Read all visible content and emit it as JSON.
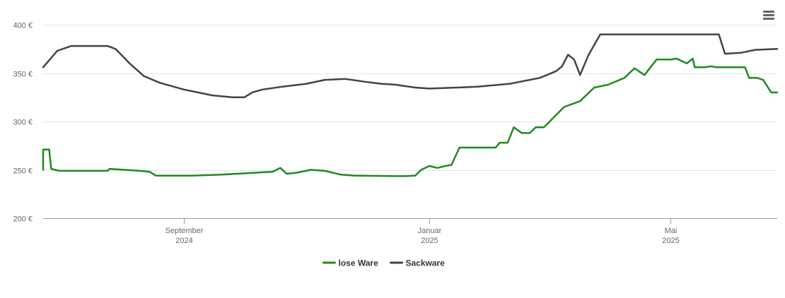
{
  "chart_data": {
    "type": "line",
    "title": "",
    "xlabel": "",
    "ylabel": "",
    "ylim": [
      200,
      400
    ],
    "yticks": [
      {
        "value": 200,
        "label": "200 €"
      },
      {
        "value": 250,
        "label": "250 €"
      },
      {
        "value": 300,
        "label": "300 €"
      },
      {
        "value": 350,
        "label": "350 €"
      },
      {
        "value": 400,
        "label": "400 €"
      }
    ],
    "xlim": [
      "2024-06-23",
      "2025-06-23"
    ],
    "xticks": [
      {
        "date": "2024-09-01",
        "line1": "September",
        "line2": "2024"
      },
      {
        "date": "2025-01-01",
        "line1": "Januar",
        "line2": "2025"
      },
      {
        "date": "2025-05-01",
        "line1": "Mai",
        "line2": "2025"
      }
    ],
    "grid": true,
    "legend_position": "bottom-center",
    "series": [
      {
        "name": "lose Ware",
        "color": "#1e8a1e",
        "points": [
          [
            "2024-06-23",
            250
          ],
          [
            "2024-06-23",
            271
          ],
          [
            "2024-06-26",
            271
          ],
          [
            "2024-06-27",
            251
          ],
          [
            "2024-07-01",
            249
          ],
          [
            "2024-07-25",
            249
          ],
          [
            "2024-07-26",
            251
          ],
          [
            "2024-08-10",
            249
          ],
          [
            "2024-08-15",
            248
          ],
          [
            "2024-08-18",
            244
          ],
          [
            "2024-09-05",
            244
          ],
          [
            "2024-09-20",
            245
          ],
          [
            "2024-10-15",
            248
          ],
          [
            "2024-10-19",
            252
          ],
          [
            "2024-10-22",
            246
          ],
          [
            "2024-10-27",
            247
          ],
          [
            "2024-11-03",
            250
          ],
          [
            "2024-11-10",
            249
          ],
          [
            "2024-11-18",
            245
          ],
          [
            "2024-11-25",
            244
          ],
          [
            "2024-12-15",
            243.5
          ],
          [
            "2024-12-20",
            243.5
          ],
          [
            "2024-12-25",
            244
          ],
          [
            "2024-12-28",
            250
          ],
          [
            "2025-01-01",
            254
          ],
          [
            "2025-01-05",
            252
          ],
          [
            "2025-01-09",
            254
          ],
          [
            "2025-01-12",
            255
          ],
          [
            "2025-01-16",
            273
          ],
          [
            "2025-02-03",
            273
          ],
          [
            "2025-02-05",
            278
          ],
          [
            "2025-02-09",
            278
          ],
          [
            "2025-02-12",
            294
          ],
          [
            "2025-02-16",
            288
          ],
          [
            "2025-02-20",
            288
          ],
          [
            "2025-02-23",
            294
          ],
          [
            "2025-02-27",
            294
          ],
          [
            "2025-03-09",
            315
          ],
          [
            "2025-03-17",
            321
          ],
          [
            "2025-03-24",
            335
          ],
          [
            "2025-03-31",
            338
          ],
          [
            "2025-04-08",
            345
          ],
          [
            "2025-04-13",
            355
          ],
          [
            "2025-04-18",
            348
          ],
          [
            "2025-04-24",
            364
          ],
          [
            "2025-05-01",
            364
          ],
          [
            "2025-05-04",
            365
          ],
          [
            "2025-05-09",
            360
          ],
          [
            "2025-05-12",
            365
          ],
          [
            "2025-05-13",
            356
          ],
          [
            "2025-05-18",
            356
          ],
          [
            "2025-05-21",
            357
          ],
          [
            "2025-05-24",
            356
          ],
          [
            "2025-06-01",
            356
          ],
          [
            "2025-06-07",
            356
          ],
          [
            "2025-06-09",
            345
          ],
          [
            "2025-06-13",
            345
          ],
          [
            "2025-06-16",
            343
          ],
          [
            "2025-06-20",
            330
          ],
          [
            "2025-06-23",
            330
          ]
        ]
      },
      {
        "name": "Sackware",
        "color": "#434348",
        "points": [
          [
            "2024-06-23",
            356
          ],
          [
            "2024-06-30",
            373
          ],
          [
            "2024-07-07",
            378
          ],
          [
            "2024-07-25",
            378
          ],
          [
            "2024-07-29",
            375
          ],
          [
            "2024-08-05",
            360
          ],
          [
            "2024-08-12",
            347
          ],
          [
            "2024-08-20",
            340
          ],
          [
            "2024-09-01",
            333
          ],
          [
            "2024-09-15",
            327
          ],
          [
            "2024-09-25",
            325
          ],
          [
            "2024-10-01",
            325
          ],
          [
            "2024-10-05",
            330
          ],
          [
            "2024-10-10",
            333
          ],
          [
            "2024-10-20",
            336
          ],
          [
            "2024-11-01",
            339
          ],
          [
            "2024-11-10",
            343
          ],
          [
            "2024-11-20",
            344
          ],
          [
            "2024-11-30",
            341
          ],
          [
            "2024-12-08",
            339
          ],
          [
            "2024-12-15",
            338
          ],
          [
            "2024-12-25",
            335
          ],
          [
            "2025-01-01",
            334
          ],
          [
            "2025-01-15",
            335
          ],
          [
            "2025-01-25",
            336
          ],
          [
            "2025-02-10",
            339
          ],
          [
            "2025-02-25",
            345
          ],
          [
            "2025-03-05",
            352
          ],
          [
            "2025-03-08",
            357
          ],
          [
            "2025-03-11",
            369
          ],
          [
            "2025-03-14",
            364
          ],
          [
            "2025-03-17",
            348
          ],
          [
            "2025-03-21",
            368
          ],
          [
            "2025-03-27",
            390
          ],
          [
            "2025-04-10",
            390
          ],
          [
            "2025-05-05",
            390
          ],
          [
            "2025-05-20",
            390
          ],
          [
            "2025-05-25",
            390
          ],
          [
            "2025-05-28",
            370
          ],
          [
            "2025-06-05",
            371
          ],
          [
            "2025-06-12",
            374
          ],
          [
            "2025-06-23",
            375
          ]
        ]
      }
    ]
  }
}
